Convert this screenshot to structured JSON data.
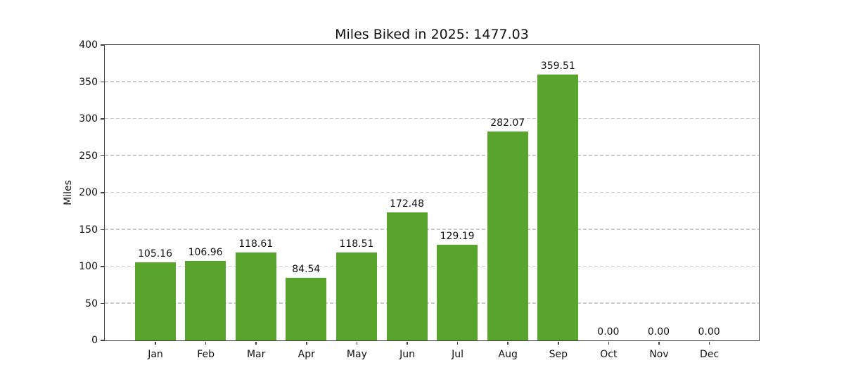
{
  "chart_data": {
    "type": "bar",
    "title": "Miles Biked in 2025: 1477.03",
    "xlabel": "",
    "ylabel": "Miles",
    "categories": [
      "Jan",
      "Feb",
      "Mar",
      "Apr",
      "May",
      "Jun",
      "Jul",
      "Aug",
      "Sep",
      "Oct",
      "Nov",
      "Dec"
    ],
    "values": [
      105.16,
      106.96,
      118.61,
      84.54,
      118.51,
      172.48,
      129.19,
      282.07,
      359.51,
      0,
      0,
      0
    ],
    "bar_labels": [
      "105.16",
      "106.96",
      "118.61",
      "84.54",
      "118.51",
      "172.48",
      "129.19",
      "282.07",
      "359.51",
      "0.00",
      "0.00",
      "0.00"
    ],
    "total": "1477.03",
    "ylim": [
      0,
      400
    ],
    "yticks": [
      0,
      50,
      100,
      150,
      200,
      250,
      300,
      350,
      400
    ],
    "grid": "horizontal-dashed",
    "legend": "none",
    "bar_color": "#59a42d",
    "grid_color": "#cbcbcb",
    "spine_color": "#424242",
    "text_color": "#111111"
  }
}
